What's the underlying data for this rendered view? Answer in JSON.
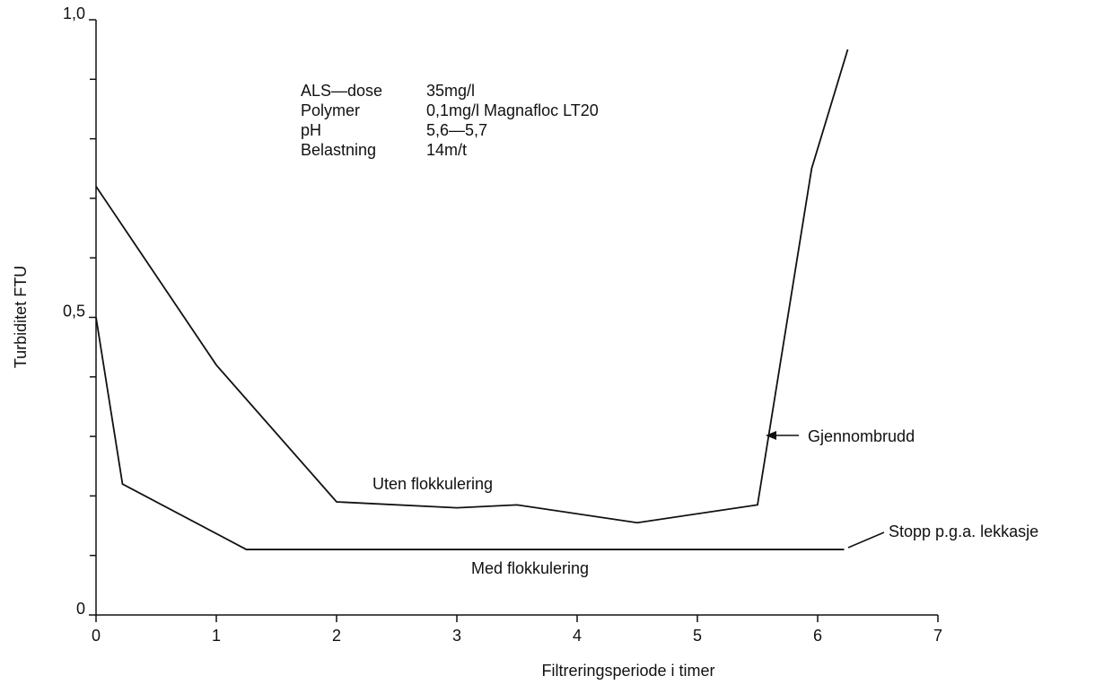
{
  "chart_data": {
    "type": "line",
    "xlabel": "Filtreringsperiode i timer",
    "ylabel": "Turbiditet FTU",
    "xlim": [
      0,
      7
    ],
    "xticks": [
      0,
      1,
      2,
      3,
      4,
      5,
      6,
      7
    ],
    "ylim": [
      0,
      1
    ],
    "yticks": [
      0,
      {
        "value": 0.5,
        "label": "0,5"
      },
      {
        "value": 1,
        "label": "1,0"
      }
    ],
    "minor_yticks": [
      0.1,
      0.2,
      0.3,
      0.4,
      0.6,
      0.7,
      0.8,
      0.9
    ],
    "series": [
      {
        "name": "Uten flokkulering",
        "color": "#111111",
        "x": [
          0,
          1,
          2,
          3,
          3.5,
          4.5,
          5.5,
          5.95,
          6.25
        ],
        "values": [
          0.72,
          0.42,
          0.19,
          0.18,
          0.185,
          0.155,
          0.185,
          0.75,
          0.95
        ]
      },
      {
        "name": "Med flokkulering",
        "color": "#111111",
        "x": [
          0,
          0.22,
          1.25,
          6.22
        ],
        "values": [
          0.5,
          0.22,
          0.11,
          0.11
        ]
      }
    ],
    "conditions": [
      {
        "label": "ALS—dose",
        "value": "35mg/l"
      },
      {
        "label": "Polymer",
        "value": "0,1mg/l Magnafloc LT20"
      },
      {
        "label": "pH",
        "value": "5,6—5,7"
      },
      {
        "label": "Belastning",
        "value": "14m/t"
      }
    ],
    "annotations": [
      "Gjennombrudd",
      "Stopp p.g.a. lekkasje"
    ]
  }
}
